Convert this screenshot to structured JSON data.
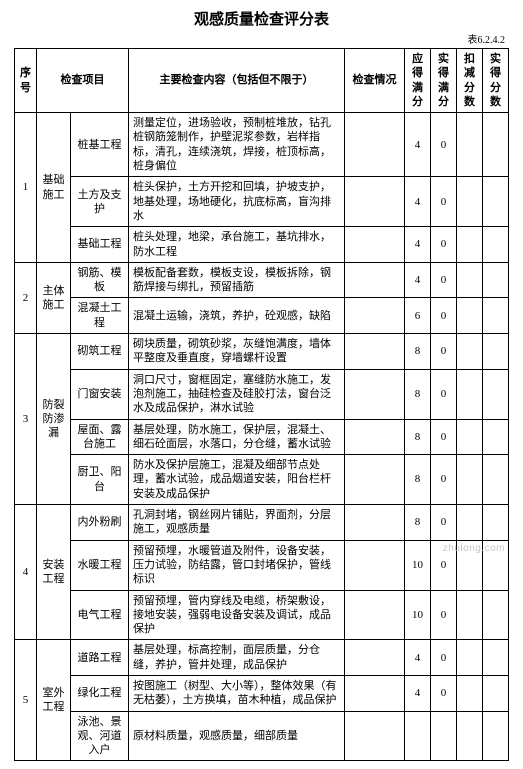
{
  "title": "观感质量检查评分表",
  "table_code": "表6.2.4.2",
  "headers": {
    "seq": "序号",
    "project": "检查项目",
    "content": "主要检查内容（包括但不限于）",
    "situation": "检查情况",
    "score_should": "应得满分",
    "score_actual": "实得满分",
    "score_deduct": "扣减分数",
    "score_final": "实得分数"
  },
  "groups": [
    {
      "seq": "1",
      "project": "基础施工",
      "rows": [
        {
          "item": "桩基工程",
          "content": "测量定位，进场验收，预制桩堆放，钻孔桩钢筋笼制作，护壁泥浆参数，岩样指标，清孔，连续浇筑，焊接，桩顶标高，桩身偏位",
          "score_should": "4",
          "score_actual": "0"
        },
        {
          "item": "土方及支护",
          "content": "桩头保护，土方开挖和回填，护坡支护，地基处理，场地硬化，抗底标高，盲沟排水",
          "score_should": "4",
          "score_actual": "0"
        },
        {
          "item": "基础工程",
          "content": "桩头处理，地梁，承台施工，基坑排水，防水工程",
          "score_should": "4",
          "score_actual": "0"
        }
      ]
    },
    {
      "seq": "2",
      "project": "主体施工",
      "rows": [
        {
          "item": "钢筋、模板",
          "content": "模板配备套数，模板支设，模板拆除，钢筋焊接与绑扎，预留插筋",
          "score_should": "4",
          "score_actual": "0"
        },
        {
          "item": "混凝土工程",
          "content": "混凝土运输，浇筑，养护，砼观感，缺陷",
          "score_should": "6",
          "score_actual": "0"
        }
      ]
    },
    {
      "seq": "3",
      "project": "防裂防渗漏",
      "rows": [
        {
          "item": "砌筑工程",
          "content": "砌块质量，砌筑砂浆，灰缝饱满度，墙体平整度及垂直度，穿墙螺杆设置",
          "score_should": "8",
          "score_actual": "0"
        },
        {
          "item": "门窗安装",
          "content": "洞口尺寸，窗框固定，塞缝防水施工，发泡剂施工，抽硅检查及硅胶打法，窗台泛水及成品保护，淋水试验",
          "score_should": "8",
          "score_actual": "0"
        },
        {
          "item": "屋面、露台施工",
          "content": "基层处理，防水施工，保护层，混凝土、细石砼面层，水落口，分仓缝，蓄水试验",
          "score_should": "8",
          "score_actual": "0"
        },
        {
          "item": "厨卫、阳台",
          "content": "防水及保护层施工，混凝及细部节点处理，蓄水试验，成品烟道安装，阳台栏杆安装及成品保护",
          "score_should": "8",
          "score_actual": "0"
        }
      ]
    },
    {
      "seq": "4",
      "project": "安装工程",
      "rows": [
        {
          "item": "内外粉刷",
          "content": "孔洞封堵，钢丝网片铺贴，界面剂，分层施工，观感质量",
          "score_should": "8",
          "score_actual": "0"
        },
        {
          "item": "水暖工程",
          "content": "预留预埋，水暖管道及附件，设备安装，压力试验，防结露，管口封堵保护，管线标识",
          "score_should": "10",
          "score_actual": "0"
        },
        {
          "item": "电气工程",
          "content": "预留预埋，管内穿线及电缆，桥架敷设，接地安装，强弱电设备安装及调试，成品保护",
          "score_should": "10",
          "score_actual": "0"
        }
      ]
    },
    {
      "seq": "5",
      "project": "室外工程",
      "rows": [
        {
          "item": "道路工程",
          "content": "基层处理，标高控制，面层质量，分仓缝，养护，管井处理，成品保护",
          "score_should": "4",
          "score_actual": "0"
        },
        {
          "item": "绿化工程",
          "content": "按图施工（树型、大小等），整体效果（有无枯萎），土方换填，苗木种植，成品保护",
          "score_should": "4",
          "score_actual": "0"
        },
        {
          "item": "泳池、景观、河道入户",
          "content": "原材料质量，观感质量，细部质量",
          "score_should": "",
          "score_actual": ""
        }
      ]
    }
  ],
  "watermark": "zhulong.com",
  "colors": {
    "border": "#000000",
    "bg": "#ffffff",
    "text": "#000000",
    "wm": "#c8c8c8"
  }
}
